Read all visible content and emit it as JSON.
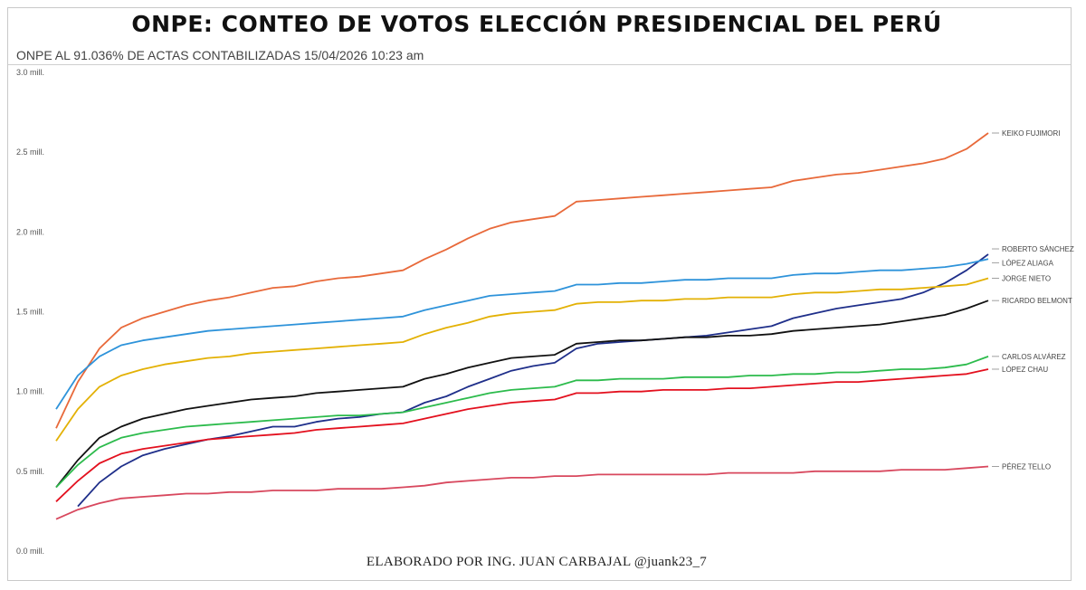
{
  "title": "ONPE: CONTEO DE VOTOS ELECCIÓN PRESIDENCIAL DEL PERÚ",
  "subtitle": "ONPE AL 91.036% DE ACTAS CONTABILIZADAS 15/04/2026 10:23 am",
  "footer": "ELABORADO POR ING. JUAN CARBAJAL @juank23_7",
  "chart_data": {
    "type": "line",
    "title": "ONPE: CONTEO DE VOTOS ELECCIÓN PRESIDENCIAL DEL PERÚ",
    "subtitle": "ONPE AL 91.036% DE ACTAS CONTABILIZADAS 15/04/2026 10:23 am",
    "xlabel": "",
    "ylabel": "",
    "ylim": [
      0,
      3.0
    ],
    "yticks": [
      0.0,
      0.5,
      1.0,
      1.5,
      2.0,
      2.5,
      3.0
    ],
    "ytick_labels": [
      "0.0 mill.",
      "0.5 mill.",
      "1.0 mill.",
      "1.5 mill.",
      "2.0 mill.",
      "2.5 mill.",
      "3.0 mill."
    ],
    "grid": false,
    "legend": "inline labels at right end of each line",
    "series": [
      {
        "name": "KEIKO FUJIMORI",
        "color": "#E8693A",
        "values": [
          0.77,
          1.06,
          1.27,
          1.4,
          1.46,
          1.5,
          1.54,
          1.57,
          1.59,
          1.62,
          1.65,
          1.66,
          1.69,
          1.71,
          1.72,
          1.74,
          1.76,
          1.83,
          1.89,
          1.96,
          2.02,
          2.06,
          2.08,
          2.1,
          2.19,
          2.2,
          2.21,
          2.22,
          2.23,
          2.24,
          2.25,
          2.26,
          2.27,
          2.28,
          2.32,
          2.34,
          2.36,
          2.37,
          2.39,
          2.41,
          2.43,
          2.46,
          2.52,
          2.62
        ]
      },
      {
        "name": "ROBERTO SÁNCHEZ",
        "color": "#1F2F8A",
        "values": [
          null,
          0.28,
          0.43,
          0.53,
          0.6,
          0.64,
          0.67,
          0.7,
          0.72,
          0.75,
          0.78,
          0.78,
          0.81,
          0.83,
          0.84,
          0.86,
          0.87,
          0.93,
          0.97,
          1.03,
          1.08,
          1.13,
          1.16,
          1.18,
          1.27,
          1.3,
          1.31,
          1.32,
          1.33,
          1.34,
          1.35,
          1.37,
          1.39,
          1.41,
          1.46,
          1.49,
          1.52,
          1.54,
          1.56,
          1.58,
          1.62,
          1.68,
          1.76,
          1.86
        ]
      },
      {
        "name": "LÓPEZ ALIAGA",
        "color": "#2E93DA",
        "values": [
          0.89,
          1.1,
          1.22,
          1.29,
          1.32,
          1.34,
          1.36,
          1.38,
          1.39,
          1.4,
          1.41,
          1.42,
          1.43,
          1.44,
          1.45,
          1.46,
          1.47,
          1.51,
          1.54,
          1.57,
          1.6,
          1.61,
          1.62,
          1.63,
          1.67,
          1.67,
          1.68,
          1.68,
          1.69,
          1.7,
          1.7,
          1.71,
          1.71,
          1.71,
          1.73,
          1.74,
          1.74,
          1.75,
          1.76,
          1.76,
          1.77,
          1.78,
          1.8,
          1.83
        ]
      },
      {
        "name": "JORGE NIETO",
        "color": "#E3B105",
        "values": [
          0.69,
          0.89,
          1.03,
          1.1,
          1.14,
          1.17,
          1.19,
          1.21,
          1.22,
          1.24,
          1.25,
          1.26,
          1.27,
          1.28,
          1.29,
          1.3,
          1.31,
          1.36,
          1.4,
          1.43,
          1.47,
          1.49,
          1.5,
          1.51,
          1.55,
          1.56,
          1.56,
          1.57,
          1.57,
          1.58,
          1.58,
          1.59,
          1.59,
          1.59,
          1.61,
          1.62,
          1.62,
          1.63,
          1.64,
          1.64,
          1.65,
          1.66,
          1.67,
          1.71
        ]
      },
      {
        "name": "RICARDO BELMONT",
        "color": "#111111",
        "values": [
          0.4,
          0.57,
          0.71,
          0.78,
          0.83,
          0.86,
          0.89,
          0.91,
          0.93,
          0.95,
          0.96,
          0.97,
          0.99,
          1.0,
          1.01,
          1.02,
          1.03,
          1.08,
          1.11,
          1.15,
          1.18,
          1.21,
          1.22,
          1.23,
          1.3,
          1.31,
          1.32,
          1.32,
          1.33,
          1.34,
          1.34,
          1.35,
          1.35,
          1.36,
          1.38,
          1.39,
          1.4,
          1.41,
          1.42,
          1.44,
          1.46,
          1.48,
          1.52,
          1.57
        ]
      },
      {
        "name": "CARLOS ALVÁREZ",
        "color": "#2CBB4C",
        "values": [
          0.4,
          0.54,
          0.65,
          0.71,
          0.74,
          0.76,
          0.78,
          0.79,
          0.8,
          0.81,
          0.82,
          0.83,
          0.84,
          0.85,
          0.85,
          0.86,
          0.87,
          0.9,
          0.93,
          0.96,
          0.99,
          1.01,
          1.02,
          1.03,
          1.07,
          1.07,
          1.08,
          1.08,
          1.08,
          1.09,
          1.09,
          1.09,
          1.1,
          1.1,
          1.11,
          1.11,
          1.12,
          1.12,
          1.13,
          1.14,
          1.14,
          1.15,
          1.17,
          1.22
        ]
      },
      {
        "name": "LÓPEZ CHAU",
        "color": "#E3101E",
        "values": [
          0.31,
          0.44,
          0.55,
          0.61,
          0.64,
          0.66,
          0.68,
          0.7,
          0.71,
          0.72,
          0.73,
          0.74,
          0.76,
          0.77,
          0.78,
          0.79,
          0.8,
          0.83,
          0.86,
          0.89,
          0.91,
          0.93,
          0.94,
          0.95,
          0.99,
          0.99,
          1.0,
          1.0,
          1.01,
          1.01,
          1.01,
          1.02,
          1.02,
          1.03,
          1.04,
          1.05,
          1.06,
          1.06,
          1.07,
          1.08,
          1.09,
          1.1,
          1.11,
          1.14
        ]
      },
      {
        "name": "PÉREZ TELLO",
        "color": "#D8485E",
        "values": [
          0.2,
          0.26,
          0.3,
          0.33,
          0.34,
          0.35,
          0.36,
          0.36,
          0.37,
          0.37,
          0.38,
          0.38,
          0.38,
          0.39,
          0.39,
          0.39,
          0.4,
          0.41,
          0.43,
          0.44,
          0.45,
          0.46,
          0.46,
          0.47,
          0.47,
          0.48,
          0.48,
          0.48,
          0.48,
          0.48,
          0.48,
          0.49,
          0.49,
          0.49,
          0.49,
          0.5,
          0.5,
          0.5,
          0.5,
          0.51,
          0.51,
          0.51,
          0.52,
          0.53
        ]
      }
    ]
  }
}
